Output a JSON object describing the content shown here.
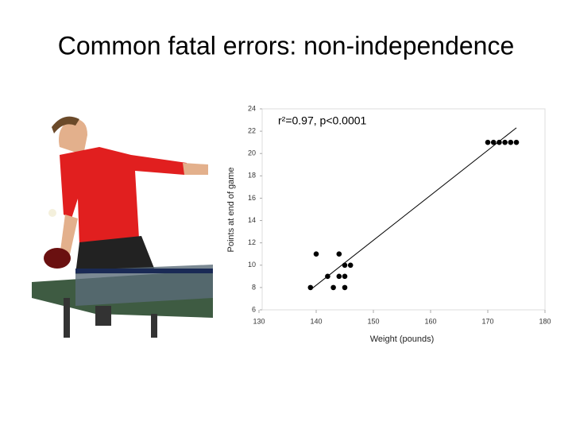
{
  "slide": {
    "title": "Common fatal errors: non-independence"
  },
  "chart_data": {
    "type": "scatter",
    "annotation": "r²=0.97, p<0.0001",
    "xlabel": "Weight (pounds)",
    "ylabel": "Points at end of game",
    "x": [
      139,
      140,
      142,
      143,
      144,
      144,
      145,
      145,
      145,
      146,
      170,
      171,
      172,
      173,
      174,
      175
    ],
    "values": [
      8,
      11,
      9,
      8,
      11,
      9,
      9,
      10,
      8,
      10,
      21,
      21,
      21,
      21,
      21,
      21
    ],
    "color": "#000000",
    "fit_line": {
      "x": [
        139,
        175
      ],
      "y": [
        7.8,
        22.3
      ]
    },
    "xlim": [
      130,
      180
    ],
    "xticks": [
      130,
      140,
      150,
      160,
      170,
      180
    ],
    "ylim": [
      6,
      24
    ],
    "yticks": [
      6,
      8,
      10,
      12,
      14,
      16,
      18,
      20,
      22,
      24
    ]
  }
}
